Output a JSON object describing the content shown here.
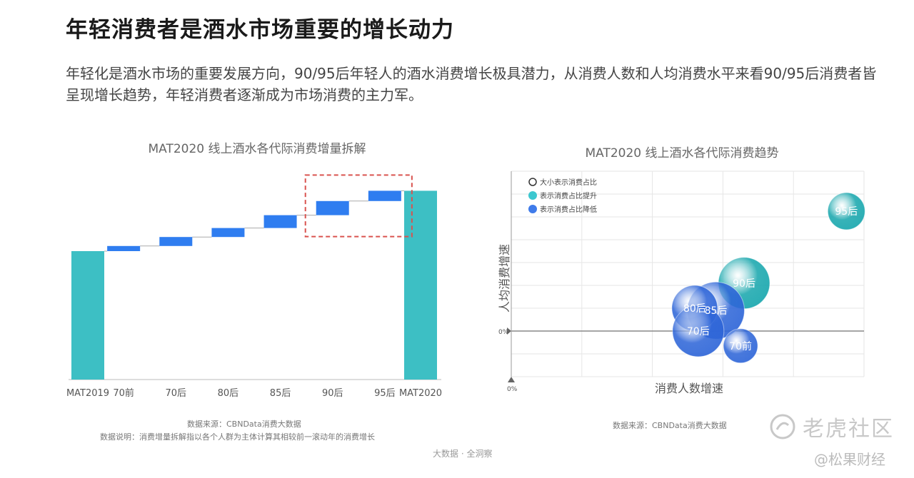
{
  "header": {
    "title": "年轻消费者是酒水市场重要的增长动力",
    "description": "年轻化是酒水市场的重要发展方向，90/95后年轻人的酒水消费增长极具潜力，从消费人数和人均消费水平来看90/95后消费者皆呈现增长趋势，年轻消费者逐渐成为市场消费的主力军。"
  },
  "chart_data": [
    {
      "type": "bar",
      "subtype": "waterfall",
      "title": "MAT2020 线上酒水各代际消费增量拆解",
      "categories": [
        "MAT2019",
        "70前",
        "70后",
        "80后",
        "85后",
        "90后",
        "95后",
        "MAT2020"
      ],
      "values": [
        100,
        4,
        7,
        7,
        10,
        11,
        8,
        147
      ],
      "kinds": [
        "total",
        "delta",
        "delta",
        "delta",
        "delta",
        "delta",
        "delta",
        "total"
      ],
      "ylim": [
        0,
        160
      ],
      "highlight": [
        "90后",
        "95后"
      ],
      "colors": {
        "total": "#3dbfc4",
        "delta": "#2f7df0",
        "highlight_box": "#d9534f",
        "connector": "#aaaaaa"
      },
      "notes": [
        "数据来源：CBNData消费大数据",
        "数据说明：消费增量拆解指以各个人群为主体计算其相较前一滚动年的消费增长"
      ]
    },
    {
      "type": "scatter",
      "subtype": "bubble",
      "title": "MAT2020 线上酒水各代际消费趋势",
      "xlabel": "消费人数增速",
      "ylabel": "人均消费增速",
      "x_zero_label": "0%",
      "y_zero_label": "0%",
      "xlim": [
        0,
        10
      ],
      "ylim": [
        -4,
        14
      ],
      "legend": {
        "position": "top-left",
        "items": [
          {
            "label": "大小表示消费占比",
            "swatch": "outline"
          },
          {
            "label": "表示消费占比提升",
            "swatch": "#3cc7cf"
          },
          {
            "label": "表示消费占比降低",
            "swatch": "#3f7bea"
          }
        ]
      },
      "points": [
        {
          "label": "95后",
          "x": 9.5,
          "y": 10.5,
          "size": 26,
          "color": "#3cc7cf"
        },
        {
          "label": "90后",
          "x": 6.6,
          "y": 4.2,
          "size": 36,
          "color": "#3cc7cf"
        },
        {
          "label": "85后",
          "x": 5.8,
          "y": 1.8,
          "size": 40,
          "color": "#3f7bea"
        },
        {
          "label": "80后",
          "x": 5.2,
          "y": 2.0,
          "size": 32,
          "color": "#3f7bea"
        },
        {
          "label": "70后",
          "x": 5.3,
          "y": 0.0,
          "size": 36,
          "color": "#3f7bea"
        },
        {
          "label": "70前",
          "x": 6.5,
          "y": -1.3,
          "size": 24,
          "color": "#3f7bea"
        }
      ],
      "notes": [
        "数据来源：CBNData消费大数据"
      ]
    }
  ],
  "footer": {
    "source": "大数据 · 全洞察"
  },
  "watermark": {
    "brand": "老虎社区",
    "sub": "@松果财经"
  }
}
